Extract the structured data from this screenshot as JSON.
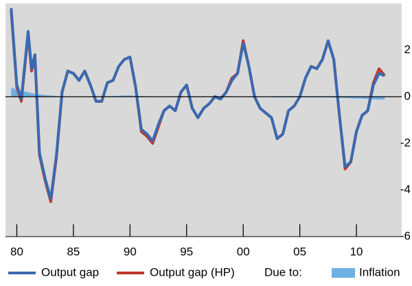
{
  "chart_data": {
    "type": "line",
    "x": [
      1979.5,
      1980,
      1980.4,
      1981,
      1981.3,
      1981.6,
      1982,
      1982.5,
      1983,
      1983.5,
      1984,
      1984.5,
      1985,
      1985.5,
      1986,
      1986.5,
      1987,
      1987.5,
      1988,
      1988.5,
      1989,
      1989.5,
      1990,
      1990.5,
      1991,
      1991.5,
      1992,
      1992.5,
      1993,
      1993.5,
      1994,
      1994.5,
      1995,
      1995.5,
      1996,
      1996.5,
      1997,
      1997.5,
      1998,
      1998.5,
      1999,
      1999.5,
      2000,
      2000.5,
      2001,
      2001.5,
      2002,
      2002.5,
      2003,
      2003.5,
      2004,
      2004.5,
      2005,
      2005.5,
      2006,
      2006.5,
      2007,
      2007.5,
      2008,
      2008.5,
      2009,
      2009.5,
      2010,
      2010.5,
      2011,
      2011.5,
      2012,
      2012.5
    ],
    "series": [
      {
        "name": "Inflation",
        "color": "#6fb0e4",
        "kind": "area",
        "values": [
          0.4,
          0.3,
          0.25,
          0.2,
          0.15,
          0.12,
          0.1,
          0.07,
          0.05,
          0.03,
          0.0,
          0.0,
          0.0,
          0.0,
          0.0,
          0.0,
          0.0,
          0.0,
          0.02,
          0.03,
          0.04,
          0.05,
          0.05,
          0.04,
          0.03,
          0.02,
          0.0,
          0.0,
          0.0,
          0.0,
          0.0,
          0.0,
          0.0,
          0.0,
          0.0,
          0.0,
          0.0,
          0.0,
          0.0,
          0.0,
          0.0,
          0.0,
          0.0,
          0.0,
          0.0,
          0.0,
          0.0,
          -0.02,
          -0.03,
          -0.03,
          -0.03,
          -0.03,
          -0.03,
          -0.03,
          -0.03,
          -0.03,
          -0.03,
          -0.03,
          -0.04,
          -0.05,
          -0.06,
          -0.07,
          -0.08,
          -0.09,
          -0.1,
          -0.11,
          -0.12,
          -0.13
        ]
      },
      {
        "name": "Output gap (HP)",
        "color": "#c0392b",
        "kind": "line",
        "values": [
          3.7,
          0.4,
          -0.2,
          2.7,
          1.1,
          1.7,
          -2.5,
          -3.6,
          -4.5,
          -2.6,
          0.2,
          1.1,
          1.0,
          0.7,
          1.1,
          0.5,
          -0.2,
          -0.2,
          0.6,
          0.7,
          1.3,
          1.6,
          1.7,
          0.4,
          -1.5,
          -1.7,
          -2.0,
          -1.3,
          -0.6,
          -0.4,
          -0.6,
          0.2,
          0.5,
          -0.5,
          -0.9,
          -0.5,
          -0.3,
          0.0,
          -0.1,
          0.2,
          0.8,
          1.0,
          2.4,
          1.3,
          0.0,
          -0.5,
          -0.7,
          -0.9,
          -1.8,
          -1.6,
          -0.6,
          -0.4,
          0.0,
          0.8,
          1.3,
          1.2,
          1.6,
          2.4,
          1.6,
          -0.8,
          -3.1,
          -2.8,
          -1.5,
          -0.8,
          -0.6,
          0.6,
          1.2,
          0.9
        ]
      },
      {
        "name": "Output gap",
        "color": "#3a6ab0",
        "kind": "line",
        "values": [
          3.8,
          0.5,
          -0.1,
          2.8,
          1.2,
          1.8,
          -2.4,
          -3.5,
          -4.4,
          -2.5,
          0.2,
          1.1,
          1.0,
          0.7,
          1.1,
          0.5,
          -0.2,
          -0.2,
          0.6,
          0.7,
          1.3,
          1.6,
          1.7,
          0.4,
          -1.4,
          -1.6,
          -1.9,
          -1.2,
          -0.6,
          -0.4,
          -0.6,
          0.2,
          0.5,
          -0.5,
          -0.9,
          -0.5,
          -0.3,
          0.0,
          -0.1,
          0.2,
          0.7,
          1.0,
          2.3,
          1.3,
          0.0,
          -0.5,
          -0.7,
          -0.9,
          -1.8,
          -1.6,
          -0.6,
          -0.4,
          0.0,
          0.8,
          1.3,
          1.2,
          1.6,
          2.4,
          1.6,
          -0.8,
          -3.0,
          -2.8,
          -1.5,
          -0.8,
          -0.6,
          0.5,
          1.0,
          0.9
        ]
      }
    ],
    "legend_title": "Due to:",
    "xlim": [
      1979,
      2014
    ],
    "xticks": [
      {
        "value": 1980,
        "label": "80"
      },
      {
        "value": 1985,
        "label": "85"
      },
      {
        "value": 1990,
        "label": "90"
      },
      {
        "value": 1995,
        "label": "95"
      },
      {
        "value": 2000,
        "label": "00"
      },
      {
        "value": 2005,
        "label": "05"
      },
      {
        "value": 2010,
        "label": "10"
      }
    ],
    "ylim": [
      -6,
      4
    ],
    "yticks": [
      2,
      0,
      -2,
      -4,
      -6
    ],
    "grid": false
  }
}
